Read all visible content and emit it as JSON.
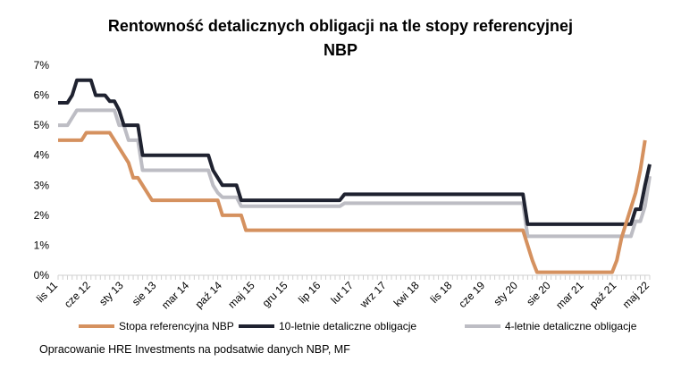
{
  "chart_data": {
    "type": "line",
    "title_line1": "Rentowność detalicznych obligacji na tle stopy referencyjnej",
    "title_line2": "NBP",
    "ylim": [
      0,
      7
    ],
    "y_ticks": [
      "0%",
      "1%",
      "2%",
      "3%",
      "4%",
      "5%",
      "6%",
      "7%"
    ],
    "y_unit": "%",
    "grid": false,
    "legend_position": "bottom",
    "x_range_months": [
      "2011-11",
      "2022-05"
    ],
    "x_ticks": [
      {
        "date": "2011-11",
        "label": "lis 11"
      },
      {
        "date": "2012-06",
        "label": "cze 12"
      },
      {
        "date": "2013-01",
        "label": "sty 13"
      },
      {
        "date": "2013-08",
        "label": "sie 13"
      },
      {
        "date": "2014-03",
        "label": "mar 14"
      },
      {
        "date": "2014-10",
        "label": "paź 14"
      },
      {
        "date": "2015-05",
        "label": "maj 15"
      },
      {
        "date": "2015-12",
        "label": "gru 15"
      },
      {
        "date": "2016-07",
        "label": "lip 16"
      },
      {
        "date": "2017-02",
        "label": "lut 17"
      },
      {
        "date": "2017-09",
        "label": "wrz 17"
      },
      {
        "date": "2018-04",
        "label": "kwi 18"
      },
      {
        "date": "2018-11",
        "label": "lis 18"
      },
      {
        "date": "2019-06",
        "label": "cze 19"
      },
      {
        "date": "2020-01",
        "label": "sty 20"
      },
      {
        "date": "2020-08",
        "label": "sie 20"
      },
      {
        "date": "2021-03",
        "label": "mar 21"
      },
      {
        "date": "2021-10",
        "label": "paź 21"
      },
      {
        "date": "2022-05",
        "label": "maj 22"
      }
    ],
    "series": [
      {
        "name": "Stopa referencyjna NBP",
        "color": "#d5915f",
        "points": [
          [
            "2011-11",
            4.5
          ],
          [
            "2012-04",
            4.5
          ],
          [
            "2012-05",
            4.75
          ],
          [
            "2012-10",
            4.75
          ],
          [
            "2012-11",
            4.5
          ],
          [
            "2012-12",
            4.25
          ],
          [
            "2013-01",
            4.0
          ],
          [
            "2013-02",
            3.75
          ],
          [
            "2013-03",
            3.25
          ],
          [
            "2013-04",
            3.25
          ],
          [
            "2013-05",
            3.0
          ],
          [
            "2013-06",
            2.75
          ],
          [
            "2013-07",
            2.5
          ],
          [
            "2014-09",
            2.5
          ],
          [
            "2014-10",
            2.0
          ],
          [
            "2015-02",
            2.0
          ],
          [
            "2015-03",
            1.5
          ],
          [
            "2020-02",
            1.5
          ],
          [
            "2020-03",
            1.0
          ],
          [
            "2020-04",
            0.5
          ],
          [
            "2020-05",
            0.1
          ],
          [
            "2021-09",
            0.1
          ],
          [
            "2021-10",
            0.5
          ],
          [
            "2021-11",
            1.25
          ],
          [
            "2021-12",
            1.75
          ],
          [
            "2022-01",
            2.25
          ],
          [
            "2022-02",
            2.75
          ],
          [
            "2022-03",
            3.5
          ],
          [
            "2022-04",
            4.5
          ]
        ]
      },
      {
        "name": "10-letnie detaliczne obligacje",
        "color": "#1f2230",
        "points": [
          [
            "2011-11",
            5.75
          ],
          [
            "2012-01",
            5.75
          ],
          [
            "2012-02",
            6.0
          ],
          [
            "2012-03",
            6.5
          ],
          [
            "2012-06",
            6.5
          ],
          [
            "2012-07",
            6.0
          ],
          [
            "2012-09",
            6.0
          ],
          [
            "2012-10",
            5.8
          ],
          [
            "2012-11",
            5.8
          ],
          [
            "2012-12",
            5.5
          ],
          [
            "2013-01",
            5.0
          ],
          [
            "2013-04",
            5.0
          ],
          [
            "2013-05",
            4.0
          ],
          [
            "2014-07",
            4.0
          ],
          [
            "2014-08",
            3.5
          ],
          [
            "2014-09",
            3.25
          ],
          [
            "2014-10",
            3.0
          ],
          [
            "2015-01",
            3.0
          ],
          [
            "2015-02",
            2.5
          ],
          [
            "2016-11",
            2.5
          ],
          [
            "2016-12",
            2.7
          ],
          [
            "2020-02",
            2.7
          ],
          [
            "2020-03",
            1.7
          ],
          [
            "2022-01",
            1.7
          ],
          [
            "2022-02",
            2.2
          ],
          [
            "2022-03",
            2.2
          ],
          [
            "2022-04",
            3.0
          ],
          [
            "2022-05",
            3.7
          ]
        ]
      },
      {
        "name": "4-letnie detaliczne obligacje",
        "color": "#bdbdc4",
        "points": [
          [
            "2011-11",
            5.0
          ],
          [
            "2012-01",
            5.0
          ],
          [
            "2012-02",
            5.25
          ],
          [
            "2012-03",
            5.5
          ],
          [
            "2012-11",
            5.5
          ],
          [
            "2012-12",
            5.0
          ],
          [
            "2013-01",
            5.0
          ],
          [
            "2013-02",
            4.5
          ],
          [
            "2013-04",
            4.5
          ],
          [
            "2013-05",
            3.5
          ],
          [
            "2014-07",
            3.5
          ],
          [
            "2014-08",
            3.0
          ],
          [
            "2014-09",
            2.75
          ],
          [
            "2014-10",
            2.6
          ],
          [
            "2015-01",
            2.6
          ],
          [
            "2015-02",
            2.3
          ],
          [
            "2016-11",
            2.3
          ],
          [
            "2016-12",
            2.4
          ],
          [
            "2020-02",
            2.4
          ],
          [
            "2020-03",
            1.3
          ],
          [
            "2022-01",
            1.3
          ],
          [
            "2022-02",
            1.8
          ],
          [
            "2022-03",
            1.8
          ],
          [
            "2022-04",
            2.3
          ],
          [
            "2022-05",
            3.3
          ]
        ]
      }
    ]
  },
  "legend": {
    "item1": "Stopa referencyjna NBP",
    "item2": "10-letnie detaliczne obligacje",
    "item3": "4-letnie detaliczne obligacje"
  },
  "source_note": "Opracowanie HRE Investments na podsatwie danych NBP, MF"
}
